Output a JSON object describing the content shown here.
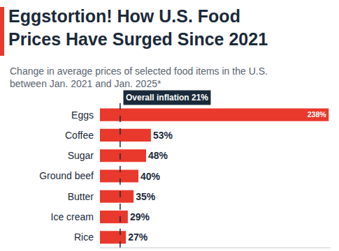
{
  "chart_data": {
    "type": "bar",
    "orientation": "horizontal",
    "title": "Eggstortion! How U.S. Food Prices Have Surged Since 2021",
    "subtitle": "Change in average prices of selected food items in the U.S. between Jan. 2021 and Jan. 2025*",
    "categories": [
      "Eggs",
      "Coffee",
      "Sugar",
      "Ground beef",
      "Butter",
      "Ice cream",
      "Rice"
    ],
    "values": [
      238,
      53,
      48,
      40,
      35,
      29,
      27
    ],
    "value_labels": [
      "238%",
      "53%",
      "48%",
      "40%",
      "35%",
      "29%",
      "27%"
    ],
    "data_labels": true,
    "color": "#e8392c",
    "xlim": [
      0,
      240
    ],
    "xticks": [],
    "grid": false,
    "tick_labels": "y",
    "annotations": [
      {
        "text": "Overall inflation 21%",
        "x": 21,
        "line_style": "dashed"
      }
    ]
  }
}
